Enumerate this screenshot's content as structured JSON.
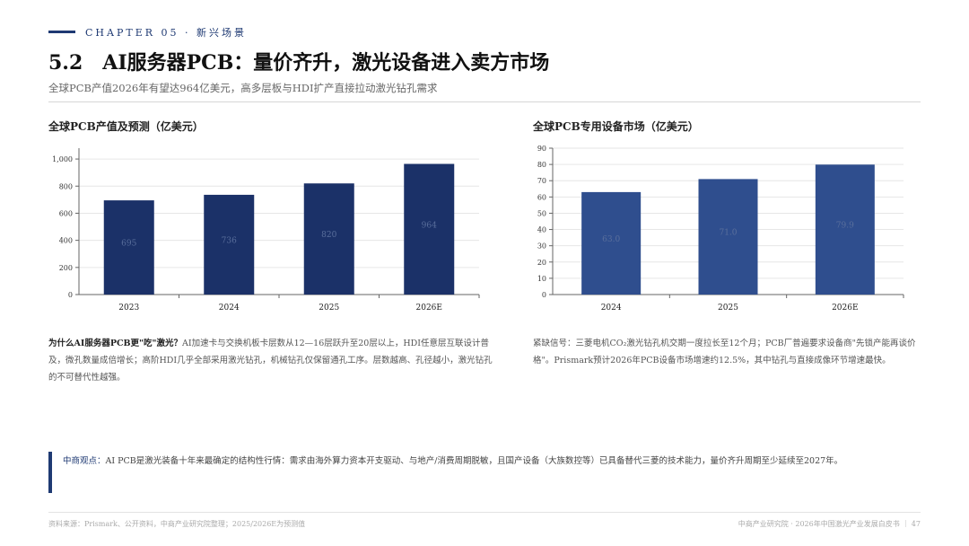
{
  "header": {
    "chapter": "CHAPTER 05 · 新兴场景",
    "section_number": "5.2",
    "title": "AI服务器PCB：量价齐升，激光设备进入卖方市场",
    "subtitle": "全球PCB产值2026年有望达964亿美元，高多层板与HDI扩产直接拉动激光钻孔需求"
  },
  "charts": {
    "left_title": "全球PCB产值及预测（亿美元）",
    "right_title": "全球PCB专用设备市场（亿美元）"
  },
  "chart_data": [
    {
      "type": "bar",
      "title": "全球PCB产值及预测（亿美元）",
      "categories": [
        "2023",
        "2024",
        "2025",
        "2026E"
      ],
      "values": [
        695,
        736,
        820,
        964
      ],
      "value_labels": [
        "695",
        "736",
        "820",
        "964"
      ],
      "ylim": [
        0,
        1080
      ],
      "yticks": [
        0,
        200,
        400,
        600,
        800,
        1000
      ],
      "ytick_labels": [
        "0",
        "200",
        "400",
        "600",
        "800",
        "1,000"
      ],
      "bar_color": "#1b3168",
      "grid": true
    },
    {
      "type": "bar",
      "title": "全球PCB专用设备市场（亿美元）",
      "categories": [
        "2024",
        "2025",
        "2026E"
      ],
      "values": [
        63.0,
        71.0,
        79.9
      ],
      "value_labels": [
        "63.0",
        "71.0",
        "79.9"
      ],
      "ylim": [
        0,
        90
      ],
      "yticks": [
        0,
        10,
        20,
        30,
        40,
        50,
        60,
        70,
        80,
        90
      ],
      "ytick_labels": [
        "0",
        "10",
        "20",
        "30",
        "40",
        "50",
        "60",
        "70",
        "80",
        "90"
      ],
      "bar_color": "#2f4e8e",
      "grid": true
    }
  ],
  "notes": {
    "left_heading": "为什么AI服务器PCB更\"吃\"激光？",
    "left_body": "AI加速卡与交换机板卡层数从12—16层跃升至20层以上，HDI任意层互联设计普及，微孔数量成倍增长；高阶HDI几乎全部采用激光钻孔，机械钻孔仅保留通孔工序。层数越高、孔径越小，激光钻孔的不可替代性越强。",
    "right_heading": "紧缺信号：",
    "right_body": "三菱电机CO₂激光钻孔机交期一度拉长至12个月；PCB厂普遍要求设备商\"先锁产能再谈价格\"。Prismark预计2026年PCB设备市场增速约12.5%，其中钻孔与直接成像环节增速最快。"
  },
  "viewpoint": {
    "label": "中商观点：",
    "text": "AI PCB是激光装备十年来最确定的结构性行情：需求由海外算力资本开支驱动、与地产/消费周期脱敏，且国产设备（大族数控等）已具备替代三菱的技术能力，量价齐升周期至少延续至2027年。"
  },
  "footer": {
    "source": "资料来源：Prismark、公开资料，中商产业研究院整理；2025/2026E为预测值",
    "right": "中商产业研究院 · 2026年中国激光产业发展白皮书 ｜ 47"
  }
}
